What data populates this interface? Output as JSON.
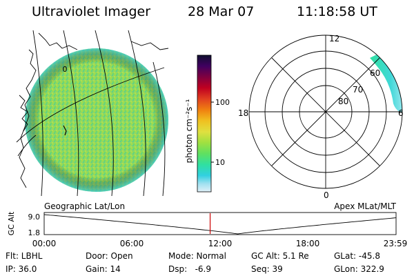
{
  "header": {
    "title": "Ultraviolet Imager",
    "date": "28 Mar 07",
    "time": "11:18:58 UT"
  },
  "geo_panel": {
    "label": "Geographic Lat/Lon",
    "marker": "0"
  },
  "colorbar": {
    "label": "photon cm⁻²s⁻¹",
    "ticks": [
      "100",
      "10"
    ],
    "scale": "log",
    "colors": [
      "#101030",
      "#400060",
      "#800040",
      "#c00020",
      "#e04020",
      "#f08010",
      "#f0c020",
      "#e0e040",
      "#a0e040",
      "#60e060",
      "#30e0a0",
      "#30d0e0",
      "#a0e0f0",
      "#e0f0f8"
    ]
  },
  "polar_panel": {
    "label": "Apex MLat/MLT",
    "hour_labels": [
      "12",
      "18",
      "6",
      "0"
    ],
    "lat_labels": [
      "60",
      "70",
      "80"
    ]
  },
  "timeline": {
    "axis_label": "GC Alt",
    "y_ticks": [
      "9.0",
      "1.8"
    ],
    "x_ticks": [
      "00:00",
      "06:00",
      "12:00",
      "18:00",
      "23:59"
    ],
    "current_hour": 11.32,
    "marker_color": "#cc0000"
  },
  "info": {
    "flt": "Flt: LBHL",
    "ip": "IP: 36.0",
    "door": "Door: Open",
    "gain": "Gain: 14",
    "mode": "Mode: Normal",
    "dsp": "Dsp:   -6.9",
    "gcalt": "GC Alt: 5.1 Re",
    "seq": "Seq: 39",
    "glat": "GLat: -45.8",
    "glon": "GLon: 322.9"
  }
}
